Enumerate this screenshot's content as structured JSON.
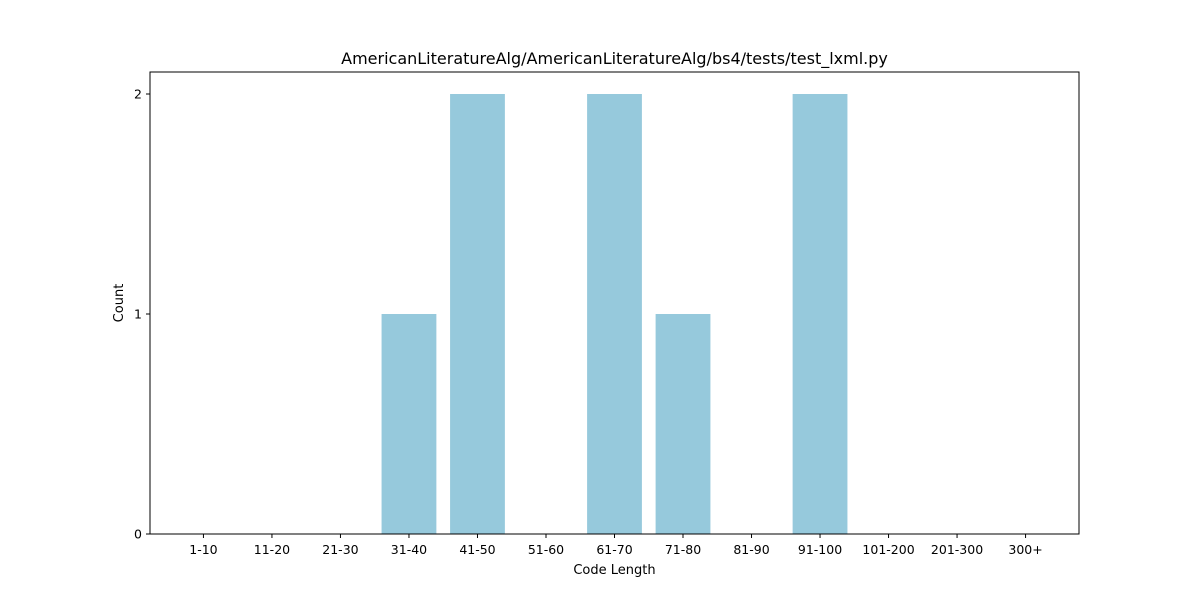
{
  "chart_data": {
    "type": "bar",
    "title": "AmericanLiteratureAlg/AmericanLiteratureAlg/bs4/tests/test_lxml.py",
    "xlabel": "Code Length",
    "ylabel": "Count",
    "categories": [
      "1-10",
      "11-20",
      "21-30",
      "31-40",
      "41-50",
      "51-60",
      "61-70",
      "71-80",
      "81-90",
      "91-100",
      "101-200",
      "201-300",
      "300+"
    ],
    "values": [
      0,
      0,
      0,
      1,
      2,
      0,
      2,
      1,
      0,
      2,
      0,
      0,
      0
    ],
    "yticks": [
      0,
      1,
      2
    ],
    "ylim": [
      0,
      2.1
    ],
    "grid": false,
    "legend": "none",
    "bar_color": "#96c9dc"
  }
}
